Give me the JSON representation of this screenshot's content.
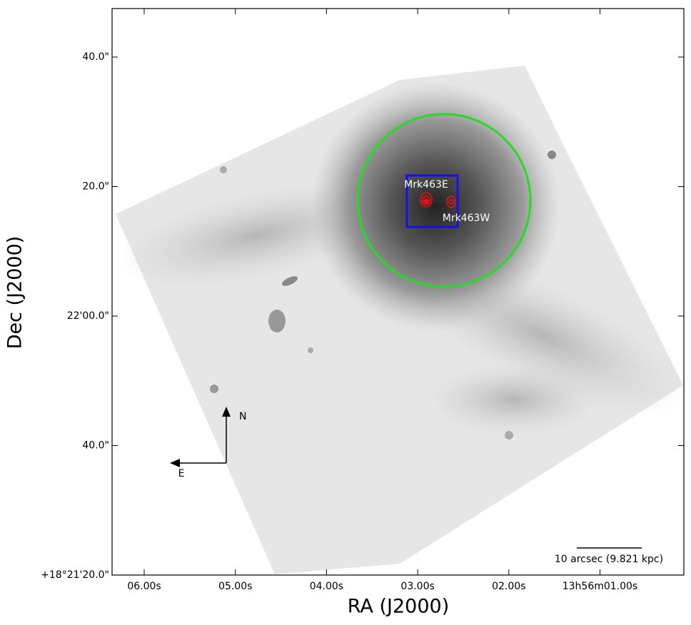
{
  "figure": {
    "xlabel": "RA (J2000)",
    "ylabel": "Dec (J2000)",
    "xtick_labels": [
      "06.00s",
      "05.00s",
      "04.00s",
      "03.00s",
      "02.00s",
      "13h56m01.00s"
    ],
    "ytick_labels": [
      "40.0\"",
      "20.0\"",
      "22'00.0\"",
      "40.0\"",
      "+18°21'20.0\""
    ],
    "sources": [
      "Mrk463E",
      "Mrk463W"
    ],
    "compass": {
      "north": "N",
      "east": "E"
    },
    "scale_bar": "10 arcsec (9.821 kpc)"
  }
}
